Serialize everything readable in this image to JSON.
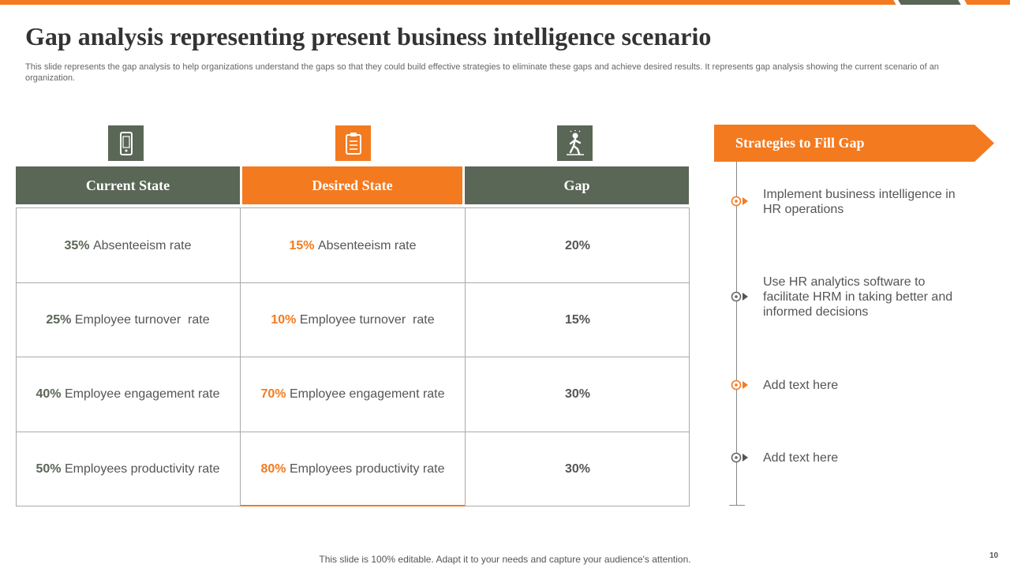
{
  "title": "Gap analysis representing present business intelligence scenario",
  "subtitle": "This slide represents the gap analysis to help organizations understand the gaps so that they could build effective strategies to eliminate these gaps and achieve desired results. It represents gap analysis showing the current scenario of an organization.",
  "colors": {
    "accent": "#f47a1f",
    "dark": "#5a6656"
  },
  "table": {
    "headers": [
      "Current State",
      "Desired State",
      "Gap"
    ],
    "icons": [
      "mobile-phone-icon",
      "clipboard-icon",
      "person-walking-icon"
    ],
    "rows": [
      {
        "current_pct": "35%",
        "current_label": "Absenteeism rate",
        "desired_pct": "15%",
        "desired_label": "Absenteeism rate",
        "gap": "20%"
      },
      {
        "current_pct": "25%",
        "current_label": "Employee turnover  rate",
        "desired_pct": "10%",
        "desired_label": "Employee turnover  rate",
        "gap": "15%"
      },
      {
        "current_pct": "40%",
        "current_label": "Employee engagement rate",
        "desired_pct": "70%",
        "desired_label": "Employee engagement rate",
        "gap": "30%"
      },
      {
        "current_pct": "50%",
        "current_label": "Employees productivity rate",
        "desired_pct": "80%",
        "desired_label": "Employees productivity rate",
        "gap": "30%"
      }
    ]
  },
  "strategies": {
    "heading": "Strategies to Fill Gap",
    "items": [
      "Implement business intelligence in HR operations",
      "Use HR analytics software to facilitate HRM in taking better and informed decisions",
      "Add text here",
      "Add text here"
    ]
  },
  "footer": "This slide is 100% editable. Adapt it to your needs and capture your audience's attention.",
  "page_number": "10"
}
